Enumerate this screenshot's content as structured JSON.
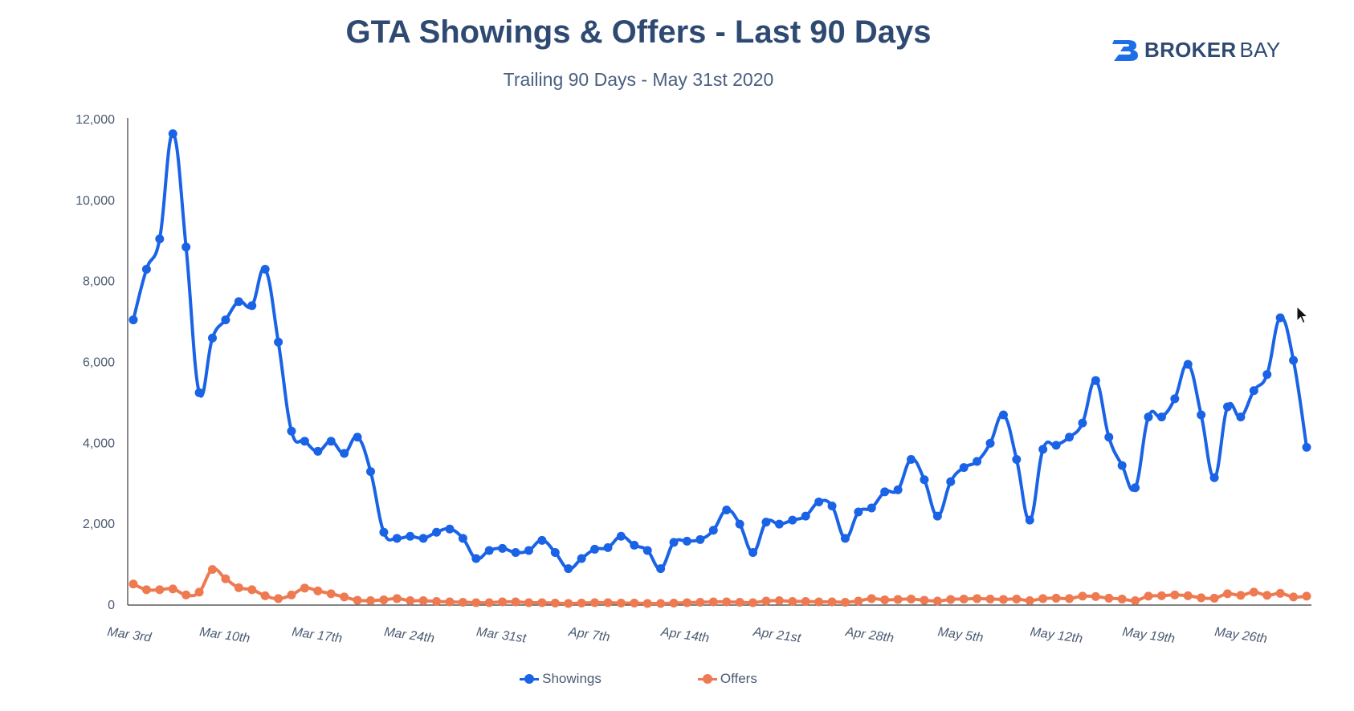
{
  "header": {
    "title": "GTA Showings & Offers - Last 90 Days",
    "subtitle": "Trailing 90 Days - May 31st 2020"
  },
  "brand": {
    "name_bold": "BROKER",
    "name_light": "BAY",
    "icon": "brokerbay-logo-icon",
    "color": "#2f4a72",
    "icon_color": "#1e6fe6"
  },
  "colors": {
    "showings": "#1a63e6",
    "offers": "#ee7a52",
    "axis": "#3b3b3b",
    "text": "#4a5a73"
  },
  "legend": {
    "placement": "bottom",
    "items": [
      {
        "label": "Showings",
        "color": "#1a63e6"
      },
      {
        "label": "Offers",
        "color": "#ee7a52"
      }
    ]
  },
  "chart_data": {
    "type": "line",
    "title": "GTA Showings & Offers - Last 90 Days",
    "subtitle": "Trailing 90 Days - May 31st 2020",
    "xlabel": "",
    "ylabel": "",
    "ylim": [
      0,
      12000
    ],
    "yticks": [
      0,
      2000,
      4000,
      6000,
      8000,
      10000,
      12000
    ],
    "ytick_labels": [
      "0",
      "2,000",
      "4,000",
      "6,000",
      "8,000",
      "10,000",
      "12,000"
    ],
    "grid": false,
    "x_start": "Mar 3rd",
    "x_tick_labels": [
      {
        "label": "Mar 3rd",
        "index": 0
      },
      {
        "label": "Mar 10th",
        "index": 7
      },
      {
        "label": "Mar 17th",
        "index": 14
      },
      {
        "label": "Mar 24th",
        "index": 21
      },
      {
        "label": "Mar 31st",
        "index": 28
      },
      {
        "label": "Apr 7th",
        "index": 35
      },
      {
        "label": "Apr 14th",
        "index": 42
      },
      {
        "label": "Apr 21st",
        "index": 49
      },
      {
        "label": "Apr 28th",
        "index": 56
      },
      {
        "label": "May 5th",
        "index": 63
      },
      {
        "label": "May 12th",
        "index": 70
      },
      {
        "label": "May 19th",
        "index": 77
      },
      {
        "label": "May 26th",
        "index": 84
      }
    ],
    "series": [
      {
        "name": "Showings",
        "values": [
          7050,
          8300,
          9050,
          11650,
          8850,
          5250,
          6600,
          7050,
          7500,
          7400,
          8300,
          6500,
          4300,
          4050,
          3800,
          4050,
          3750,
          4150,
          3300,
          1800,
          1650,
          1700,
          1650,
          1800,
          1880,
          1650,
          1150,
          1350,
          1400,
          1300,
          1350,
          1600,
          1300,
          900,
          1150,
          1380,
          1420,
          1700,
          1480,
          1350,
          900,
          1550,
          1580,
          1620,
          1850,
          2350,
          2000,
          1300,
          2050,
          2000,
          2100,
          2200,
          2550,
          2450,
          1650,
          2300,
          2400,
          2800,
          2850,
          3600,
          3100,
          2200,
          3050,
          3400,
          3550,
          4000,
          4700,
          3600,
          2100,
          3850,
          3950,
          4150,
          4500,
          5550,
          4150,
          3450,
          2900,
          4650,
          4650,
          5100,
          5950,
          4700,
          3150,
          4900,
          4650,
          5300,
          5700,
          7100,
          6050,
          3900
        ]
      },
      {
        "name": "Offers",
        "values": [
          520,
          380,
          380,
          400,
          250,
          320,
          880,
          650,
          430,
          380,
          230,
          160,
          250,
          420,
          350,
          280,
          200,
          120,
          110,
          130,
          160,
          110,
          110,
          90,
          80,
          70,
          60,
          60,
          80,
          80,
          60,
          60,
          50,
          40,
          50,
          60,
          60,
          50,
          50,
          40,
          40,
          50,
          60,
          70,
          80,
          80,
          70,
          60,
          100,
          110,
          90,
          90,
          80,
          80,
          70,
          100,
          160,
          130,
          140,
          150,
          120,
          100,
          140,
          150,
          160,
          150,
          140,
          150,
          110,
          160,
          170,
          160,
          220,
          210,
          170,
          150,
          110,
          220,
          230,
          250,
          230,
          180,
          170,
          280,
          240,
          320,
          240,
          290,
          200,
          220
        ]
      }
    ]
  }
}
